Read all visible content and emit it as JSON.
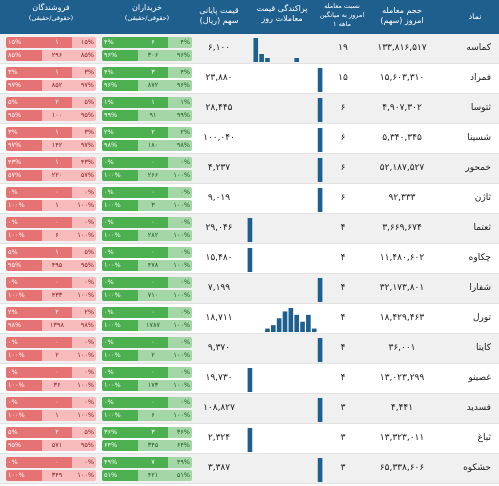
{
  "colors": {
    "header": "#1e5f8e",
    "buy_dark": "#4caf50",
    "buy_light": "#a5d6a7",
    "sell_dark": "#e57373",
    "sell_light": "#f8bbbb",
    "hist_bar": "#1e5f8e"
  },
  "header": {
    "symbol": "نماد",
    "volume_l1": "حجم معامله",
    "volume_l2": "امروز (سهم)",
    "ratio_l1": "نسبت معامله",
    "ratio_l2": "امروز به میانگین",
    "ratio_l3": "۱ ماهه",
    "hist_l1": "پراکندگی قیمت",
    "hist_l2": "معاملات روز",
    "price_l1": "قیمت پایانی",
    "price_l2": "سهم (ریال)",
    "buyers_l1": "خریداران",
    "buyers_l2": "(حقوقی/حقیقی)",
    "sellers_l1": "فروشندگان",
    "sellers_l2": "(حقوقی/حقیقی)"
  },
  "icons": {
    "person_icon": "person-icon",
    "group_icon": "group-icon"
  },
  "rows": [
    {
      "symbol": "کماسه",
      "volume": "۱۳۳,۸۱۶,۵۱۷",
      "ratio": "۱۹",
      "price": "۶,۱۰۰",
      "hist": [
        0,
        6,
        2,
        1,
        0,
        0,
        0,
        0,
        1,
        0,
        0,
        0,
        0
      ],
      "buy_top": {
        "l": "۴%",
        "m": "۶",
        "r": "۴%"
      },
      "buy_bot": {
        "l": "۹۶%",
        "m": "۳۰۶",
        "r": "۹۶%"
      },
      "sell_top": {
        "l": "۱۵%",
        "m": "۱",
        "r": "۱۵%"
      },
      "sell_bot": {
        "l": "۸۵%",
        "m": "۲۹۶",
        "r": "۸۵%"
      }
    },
    {
      "symbol": "فمراد",
      "volume": "۱۵,۶۰۳,۳۱۰",
      "ratio": "۱۵",
      "price": "۲۳,۸۸۰",
      "hist": [
        0,
        0,
        0,
        0,
        0,
        0,
        0,
        0,
        0,
        0,
        0,
        0,
        10
      ],
      "buy_top": {
        "l": "۴%",
        "m": "۳",
        "r": "۴%"
      },
      "buy_bot": {
        "l": "۹۶%",
        "m": "۸۷۲",
        "r": "۹۶%"
      },
      "sell_top": {
        "l": "۳%",
        "m": "۱",
        "r": "۳%"
      },
      "sell_bot": {
        "l": "۹۷%",
        "m": "۸۵۲",
        "r": "۹۷%"
      }
    },
    {
      "symbol": "ثتوسا",
      "volume": "۴,۹۰۷,۳۰۲",
      "ratio": "۶",
      "price": "۲۸,۴۴۵",
      "hist": [
        0,
        0,
        0,
        0,
        0,
        0,
        0,
        0,
        0,
        0,
        0,
        0,
        10
      ],
      "buy_top": {
        "l": "۱%",
        "m": "۱",
        "r": "۱%"
      },
      "buy_bot": {
        "l": "۹۹%",
        "m": "۹۱",
        "r": "۹۹%"
      },
      "sell_top": {
        "l": "۵%",
        "m": "۲",
        "r": "۵%"
      },
      "sell_bot": {
        "l": "۹۵%",
        "m": "۱۰۰",
        "r": "۹۵%"
      }
    },
    {
      "symbol": "شسینا",
      "volume": "۵,۳۴۰,۳۴۵",
      "ratio": "۶",
      "price": "۱۰۰,۰۴۰",
      "hist": [
        0,
        0,
        0,
        0,
        0,
        0,
        0,
        0,
        0,
        0,
        0,
        0,
        10
      ],
      "buy_top": {
        "l": "۲%",
        "m": "۲",
        "r": "۲%"
      },
      "buy_bot": {
        "l": "۹۸%",
        "m": "۱۸۰",
        "r": "۹۸%"
      },
      "sell_top": {
        "l": "۳%",
        "m": "۱",
        "r": "۳%"
      },
      "sell_bot": {
        "l": "۹۷%",
        "m": "۱۴۲",
        "r": "۹۷%"
      }
    },
    {
      "symbol": "خمحور",
      "volume": "۵۲,۱۸۷,۵۲۷",
      "ratio": "۶",
      "price": "۴,۲۳۷",
      "hist": [
        0,
        0,
        0,
        0,
        0,
        0,
        0,
        0,
        0,
        0,
        0,
        0,
        10
      ],
      "buy_top": {
        "l": "۰%",
        "m": "۰",
        "r": "۰%"
      },
      "buy_bot": {
        "l": "۱۰۰%",
        "m": "۲۶۶",
        "r": "۱۰۰%"
      },
      "sell_top": {
        "l": "۴۳%",
        "m": "۱",
        "r": "۴۳%"
      },
      "sell_bot": {
        "l": "۵۷%",
        "m": "۲۲۰",
        "r": "۵۷%"
      }
    },
    {
      "symbol": "ثاژن",
      "volume": "۹۲,۳۳۳",
      "ratio": "۶",
      "price": "۹,۰۱۹",
      "hist": [
        0,
        0,
        0,
        0,
        0,
        0,
        0,
        0,
        0,
        0,
        0,
        0,
        10
      ],
      "buy_top": {
        "l": "۰%",
        "m": "۰",
        "r": "۰%"
      },
      "buy_bot": {
        "l": "۱۰۰%",
        "m": "۳",
        "r": "۱۰۰%"
      },
      "sell_top": {
        "l": "۰%",
        "m": "۰",
        "r": "۰%"
      },
      "sell_bot": {
        "l": "۱۰۰%",
        "m": "۱",
        "r": "۱۰۰%"
      }
    },
    {
      "symbol": "ثعتما",
      "volume": "۳,۶۶۹,۶۷۴",
      "ratio": "۴",
      "price": "۲۹,۰۴۶",
      "hist": [
        10,
        0,
        0,
        0,
        0,
        0,
        0,
        0,
        0,
        0,
        0,
        0,
        0
      ],
      "buy_top": {
        "l": "۰%",
        "m": "۰",
        "r": "۰%"
      },
      "buy_bot": {
        "l": "۱۰۰%",
        "m": "۲۸۲",
        "r": "۱۰۰%"
      },
      "sell_top": {
        "l": "۰%",
        "m": "۰",
        "r": "۰%"
      },
      "sell_bot": {
        "l": "۱۰۰%",
        "m": "۶",
        "r": "۱۰۰%"
      }
    },
    {
      "symbol": "چکاوه",
      "volume": "۱۱,۴۸۰,۶۰۲",
      "ratio": "۴",
      "price": "۱۵,۴۸۰",
      "hist": [
        10,
        0,
        0,
        0,
        0,
        0,
        0,
        0,
        0,
        0,
        0,
        0,
        0
      ],
      "buy_top": {
        "l": "۰%",
        "m": "۰",
        "r": "۰%"
      },
      "buy_bot": {
        "l": "۱۰۰%",
        "m": "۴۷۸",
        "r": "۱۰۰%"
      },
      "sell_top": {
        "l": "۵%",
        "m": "۱",
        "r": "۵%"
      },
      "sell_bot": {
        "l": "۹۵%",
        "m": "۴۹۵",
        "r": "۹۵%"
      }
    },
    {
      "symbol": "شفارا",
      "volume": "۳۲,۱۷۳,۸۰۱",
      "ratio": "۴",
      "price": "۷,۱۹۹",
      "hist": [
        0,
        0,
        0,
        0,
        0,
        0,
        0,
        0,
        0,
        0,
        0,
        0,
        10
      ],
      "buy_top": {
        "l": "۰%",
        "m": "۰",
        "r": "۰%"
      },
      "buy_bot": {
        "l": "۱۰۰%",
        "m": "۷۱۰",
        "r": "۱۰۰%"
      },
      "sell_top": {
        "l": "۰%",
        "m": "۰",
        "r": "۰%"
      },
      "sell_bot": {
        "l": "۱۰۰%",
        "m": "۴۳۳",
        "r": "۱۰۰%"
      }
    },
    {
      "symbol": "تورل",
      "volume": "۱۸,۴۲۹,۴۶۳",
      "ratio": "۴",
      "price": "۱۸,۷۱۱",
      "hist": [
        0,
        0,
        0,
        1,
        2,
        4,
        6,
        7,
        5,
        3,
        5,
        1,
        0
      ],
      "buy_top": {
        "l": "۰%",
        "m": "۰",
        "r": "۰%"
      },
      "buy_bot": {
        "l": "۱۰۰%",
        "m": "۱۷۸۷",
        "r": "۱۰۰%"
      },
      "sell_top": {
        "l": "۲%",
        "m": "۲",
        "r": "۲%"
      },
      "sell_bot": {
        "l": "۹۸%",
        "m": "۱۳۹۸",
        "r": "۹۸%"
      }
    },
    {
      "symbol": "کایتا",
      "volume": "۳۶,۰۰۱",
      "ratio": "۴",
      "price": "۹,۳۷۰",
      "hist": [
        0,
        0,
        0,
        0,
        0,
        0,
        0,
        0,
        0,
        0,
        0,
        0,
        10
      ],
      "buy_top": {
        "l": "۰%",
        "m": "۰",
        "r": "۰%"
      },
      "buy_bot": {
        "l": "۱۰۰%",
        "m": "۲",
        "r": "۱۰۰%"
      },
      "sell_top": {
        "l": "۰%",
        "m": "۰",
        "r": "۰%"
      },
      "sell_bot": {
        "l": "۱۰۰%",
        "m": "۲",
        "r": "۱۰۰%"
      }
    },
    {
      "symbol": "غصینو",
      "volume": "۱۳,۰۲۳,۲۹۹",
      "ratio": "۴",
      "price": "۱۹,۷۳۰",
      "hist": [
        10,
        0,
        0,
        0,
        0,
        0,
        0,
        0,
        0,
        0,
        0,
        0,
        0
      ],
      "buy_top": {
        "l": "۰%",
        "m": "۰",
        "r": "۰%"
      },
      "buy_bot": {
        "l": "۱۰۰%",
        "m": "۱۷۳",
        "r": "۱۰۰%"
      },
      "sell_top": {
        "l": "۰%",
        "m": "۰",
        "r": "۰%"
      },
      "sell_bot": {
        "l": "۱۰۰%",
        "m": "۳۶",
        "r": "۱۰۰%"
      }
    },
    {
      "symbol": "فسدید",
      "volume": "۴,۴۴۱",
      "ratio": "۳",
      "price": "۱۰۸,۸۲۷",
      "hist": [
        0,
        0,
        0,
        0,
        0,
        0,
        0,
        0,
        0,
        0,
        0,
        0,
        10
      ],
      "buy_top": {
        "l": "۰%",
        "m": "۰",
        "r": "۰%"
      },
      "buy_bot": {
        "l": "۱۰۰%",
        "m": "۶",
        "r": "۱۰۰%"
      },
      "sell_top": {
        "l": "۰%",
        "m": "۰",
        "r": "۰%"
      },
      "sell_bot": {
        "l": "۱۰۰%",
        "m": "۱",
        "r": "۱۰۰%"
      }
    },
    {
      "symbol": "ثباغ",
      "volume": "۱۳,۳۲۳,۰۱۱",
      "ratio": "۳",
      "price": "۲,۳۲۴",
      "hist": [
        10,
        0,
        0,
        0,
        0,
        0,
        0,
        0,
        0,
        0,
        0,
        0,
        0
      ],
      "buy_top": {
        "l": "۳۶%",
        "m": "۳",
        "r": "۳۶%"
      },
      "buy_bot": {
        "l": "۶۴%",
        "m": "۳۴۵",
        "r": "۶۴%"
      },
      "sell_top": {
        "l": "۵%",
        "m": "۲",
        "r": "۵%"
      },
      "sell_bot": {
        "l": "۹۵%",
        "m": "۵۷۱",
        "r": "۹۵%"
      }
    },
    {
      "symbol": "حشکوه",
      "volume": "۶۵,۳۳۸,۶۰۶",
      "ratio": "۳",
      "price": "۳,۳۸۷",
      "hist": [
        0,
        0,
        0,
        0,
        0,
        0,
        0,
        0,
        0,
        0,
        0,
        0,
        10
      ],
      "buy_top": {
        "l": "۴۹%",
        "m": "۷",
        "r": "۴۹%"
      },
      "buy_bot": {
        "l": "۵۱%",
        "m": "۴۲۱",
        "r": "۵۱%"
      },
      "sell_top": {
        "l": "۰%",
        "m": "۰",
        "r": "۰%"
      },
      "sell_bot": {
        "l": "۱۰۰%",
        "m": "۳۴۹",
        "r": "۱۰۰%"
      }
    }
  ]
}
